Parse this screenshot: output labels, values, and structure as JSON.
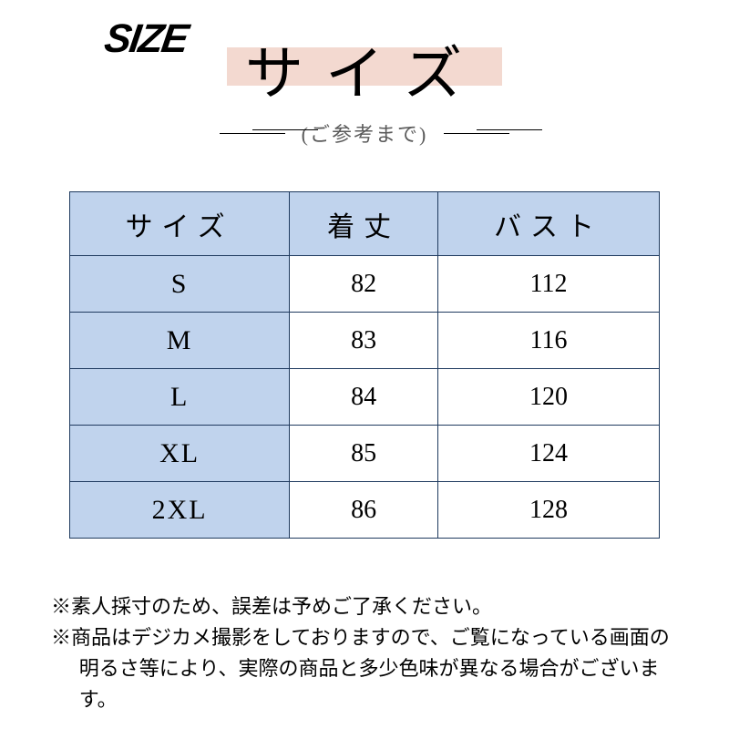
{
  "header": {
    "badge": "SIZE",
    "title": "サイズ",
    "subtitle": "(ご参考まで)",
    "title_highlight_color": "#f3d9d0",
    "title_fontsize": 64,
    "subtitle_fontsize": 22
  },
  "table": {
    "type": "table",
    "border_color": "#1f3a5f",
    "header_bg": "#c0d3ed",
    "size_col_bg": "#c0d3ed",
    "cell_bg": "#ffffff",
    "header_fontsize": 30,
    "cell_fontsize": 28,
    "col_widths_pct": [
      33.3,
      33.3,
      33.3
    ],
    "columns": [
      "サイズ",
      "着丈",
      "バスト"
    ],
    "rows": [
      {
        "size": "S",
        "length": "82",
        "bust": "112"
      },
      {
        "size": "M",
        "length": "83",
        "bust": "116"
      },
      {
        "size": "L",
        "length": "84",
        "bust": "120"
      },
      {
        "size": "XL",
        "length": "85",
        "bust": "124"
      },
      {
        "size": "2XL",
        "length": "86",
        "bust": "128"
      }
    ]
  },
  "notes": {
    "line1": "※素人採寸のため、誤差は予めご了承ください。",
    "line2a": "※商品はデジカメ撮影をしておりますので、ご覧になっている画面の",
    "line2b": "明るさ等により、実際の商品と多少色味が異なる場合がございます。",
    "fontsize": 22
  },
  "colors": {
    "page_bg": "#ffffff",
    "text": "#000000"
  }
}
